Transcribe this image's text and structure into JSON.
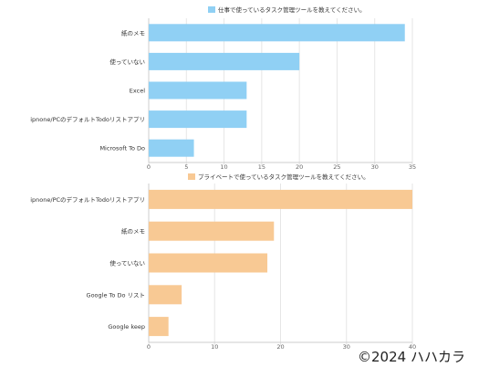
{
  "copyright": "©2024 ハハカラ",
  "chart_data": [
    {
      "type": "bar",
      "orientation": "horizontal",
      "legend": "仕事で使っているタスク管理ツールを教えてください。",
      "legend_position": "top",
      "color": "#90d0f4",
      "categories": [
        "紙のメモ",
        "使っていない",
        "Excel",
        "ipnone/PCのデフォルトTodoリストアプリ",
        "Microsoft To Do"
      ],
      "values": [
        34,
        20,
        13,
        13,
        6
      ],
      "xlim": [
        0,
        35
      ],
      "xticks": [
        "0",
        "5",
        "10",
        "15",
        "20",
        "25",
        "30",
        "35"
      ],
      "grid": true
    },
    {
      "type": "bar",
      "orientation": "horizontal",
      "legend": "プライベートで使っているタスク管理ツールを教えてください。",
      "legend_position": "top",
      "color": "#f8c994",
      "categories": [
        "ipnone/PCのデフォルトTodoリストアプリ",
        "紙のメモ",
        "使っていない",
        "Google To Do リスト",
        "Google keep"
      ],
      "values": [
        40,
        19,
        18,
        5,
        3
      ],
      "xlim": [
        0,
        40
      ],
      "xticks": [
        "0",
        "10",
        "20",
        "30",
        "40"
      ],
      "grid": true
    }
  ]
}
